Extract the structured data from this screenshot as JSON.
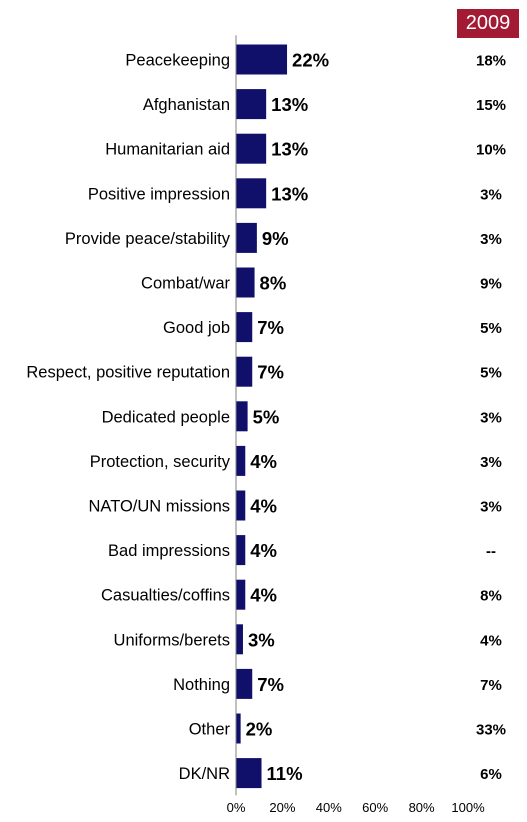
{
  "comparison_header": "2009",
  "colors": {
    "bar": "#10106b",
    "badge": "#a31a35",
    "text": "#000000"
  },
  "chart_data": {
    "type": "bar",
    "orientation": "horizontal",
    "title": "",
    "xlabel": "",
    "ylabel": "",
    "xlim": [
      0,
      100
    ],
    "x_ticks": [
      "0%",
      "20%",
      "40%",
      "60%",
      "80%",
      "100%"
    ],
    "grid": false,
    "categories": [
      "Peacekeeping",
      "Afghanistan",
      "Humanitarian aid",
      "Positive impression",
      "Provide peace/stability",
      "Combat/war",
      "Good job",
      "Respect, positive reputation",
      "Dedicated people",
      "Protection, security",
      "NATO/UN missions",
      "Bad impressions",
      "Casualties/coffins",
      "Uniforms/berets",
      "Nothing",
      "Other",
      "DK/NR"
    ],
    "values": [
      22,
      13,
      13,
      13,
      9,
      8,
      7,
      7,
      5,
      4,
      4,
      4,
      4,
      3,
      7,
      2,
      11
    ],
    "value_labels": [
      "22%",
      "13%",
      "13%",
      "13%",
      "9%",
      "8%",
      "7%",
      "7%",
      "5%",
      "4%",
      "4%",
      "4%",
      "4%",
      "3%",
      "7%",
      "2%",
      "11%"
    ],
    "comparison_values": [
      "18%",
      "15%",
      "10%",
      "3%",
      "3%",
      "9%",
      "5%",
      "5%",
      "3%",
      "3%",
      "3%",
      "--",
      "8%",
      "4%",
      "7%",
      "33%",
      "6%"
    ]
  }
}
